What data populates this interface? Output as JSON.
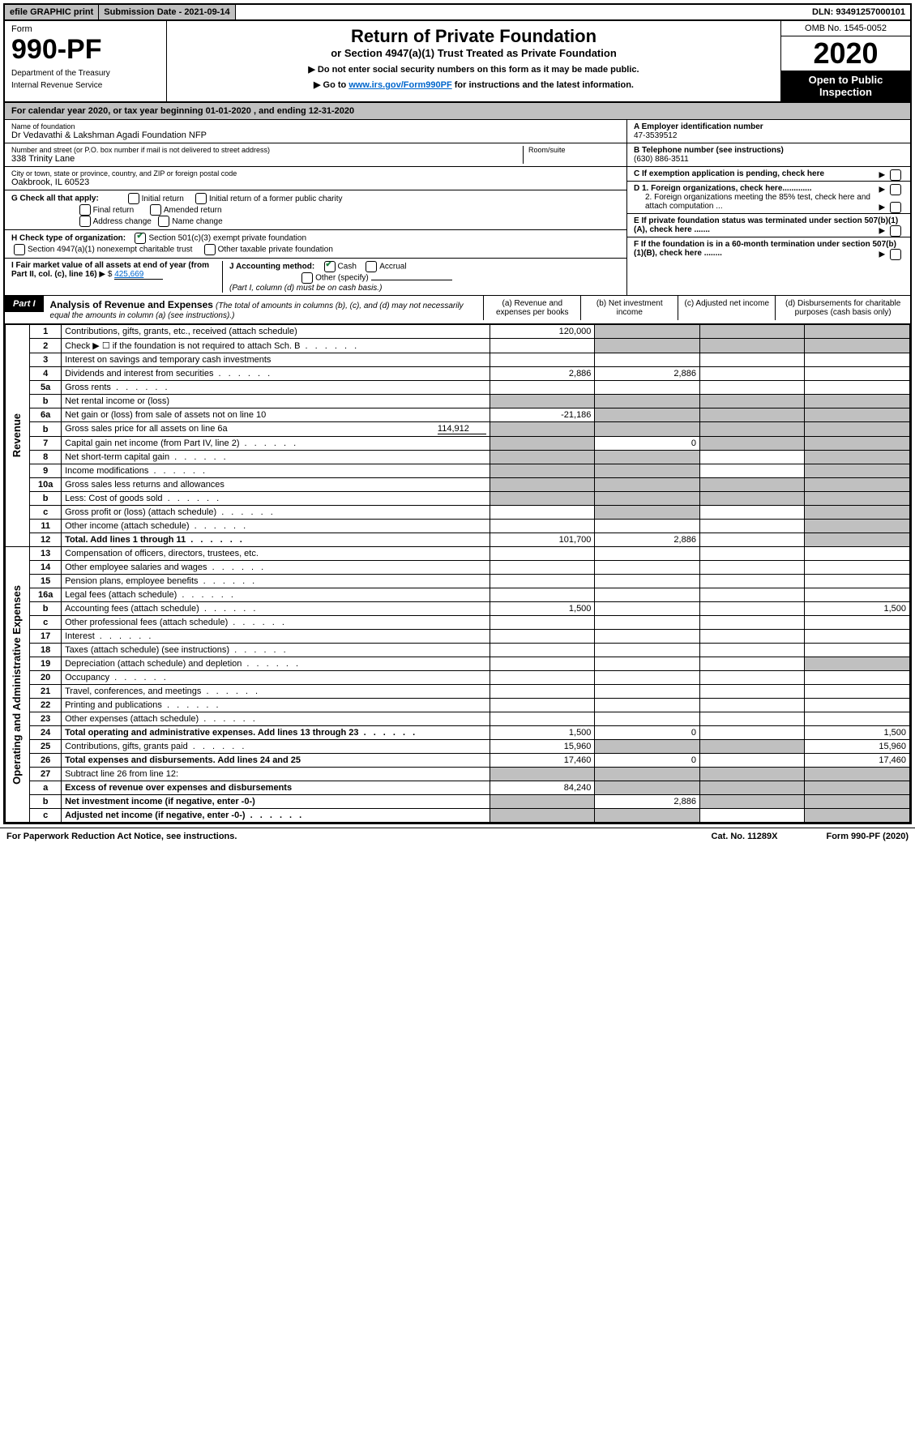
{
  "topbar": {
    "efile": "efile GRAPHIC print",
    "submission": "Submission Date - 2021-09-14",
    "dln": "DLN: 93491257000101"
  },
  "header": {
    "form_label": "Form",
    "form_number": "990-PF",
    "dept1": "Department of the Treasury",
    "dept2": "Internal Revenue Service",
    "title": "Return of Private Foundation",
    "subtitle": "or Section 4947(a)(1) Trust Treated as Private Foundation",
    "instruction1": "▶ Do not enter social security numbers on this form as it may be made public.",
    "instruction2_pre": "▶ Go to ",
    "instruction2_link": "www.irs.gov/Form990PF",
    "instruction2_post": " for instructions and the latest information.",
    "omb": "OMB No. 1545-0052",
    "year": "2020",
    "open_public": "Open to Public Inspection"
  },
  "calyear": "For calendar year 2020, or tax year beginning 01-01-2020                           , and ending 12-31-2020",
  "foundation": {
    "name_label": "Name of foundation",
    "name": "Dr Vedavathi & Lakshman Agadi Foundation NFP",
    "addr_label": "Number and street (or P.O. box number if mail is not delivered to street address)",
    "room_label": "Room/suite",
    "addr": "338 Trinity Lane",
    "city_label": "City or town, state or province, country, and ZIP or foreign postal code",
    "city": "Oakbrook, IL  60523",
    "ein_label": "A Employer identification number",
    "ein": "47-3539512",
    "phone_label": "B Telephone number (see instructions)",
    "phone": "(630) 886-3511",
    "c_label": "C  If exemption application is pending, check here",
    "d1": "D 1. Foreign organizations, check here.............",
    "d2": "2. Foreign organizations meeting the 85% test, check here and attach computation ...",
    "e_label": "E  If private foundation status was terminated under section 507(b)(1)(A), check here .......",
    "f_label": "F  If the foundation is in a 60-month termination under section 507(b)(1)(B), check here ........"
  },
  "sectionG": {
    "label": "G Check all that apply:",
    "opts": [
      "Initial return",
      "Initial return of a former public charity",
      "Final return",
      "Amended return",
      "Address change",
      "Name change"
    ]
  },
  "sectionH": {
    "label": "H Check type of organization:",
    "opt1": "Section 501(c)(3) exempt private foundation",
    "opt2": "Section 4947(a)(1) nonexempt charitable trust",
    "opt3": "Other taxable private foundation"
  },
  "sectionI": {
    "label": "I Fair market value of all assets at end of year (from Part II, col. (c), line 16)",
    "arrow": "▶ $",
    "value": "425,669"
  },
  "sectionJ": {
    "label": "J Accounting method:",
    "cash": "Cash",
    "accrual": "Accrual",
    "other": "Other (specify)",
    "note": "(Part I, column (d) must be on cash basis.)"
  },
  "partI": {
    "badge": "Part I",
    "title": "Analysis of Revenue and Expenses",
    "note": "(The total of amounts in columns (b), (c), and (d) may not necessarily equal the amounts in column (a) (see instructions).)",
    "col_a": "(a)   Revenue and expenses per books",
    "col_b": "(b)   Net investment income",
    "col_c": "(c)  Adjusted net income",
    "col_d": "(d)  Disbursements for charitable purposes (cash basis only)"
  },
  "revenue_label": "Revenue",
  "expenses_label": "Operating and Administrative Expenses",
  "rows": [
    {
      "n": "1",
      "desc": "Contributions, gifts, grants, etc., received (attach schedule)",
      "a": "120,000",
      "shade_b": true,
      "shade_c": true,
      "shade_d": true
    },
    {
      "n": "2",
      "desc": "Check ▶ ☐ if the foundation is not required to attach Sch. B",
      "shade_b": true,
      "shade_c": true,
      "shade_d": true,
      "dotted": true
    },
    {
      "n": "3",
      "desc": "Interest on savings and temporary cash investments"
    },
    {
      "n": "4",
      "desc": "Dividends and interest from securities",
      "a": "2,886",
      "b": "2,886",
      "dotted": true
    },
    {
      "n": "5a",
      "desc": "Gross rents",
      "dotted": true
    },
    {
      "n": "b",
      "desc": "Net rental income or (loss)",
      "shade_a": true,
      "shade_b": true,
      "shade_c": true,
      "shade_d": true
    },
    {
      "n": "6a",
      "desc": "Net gain or (loss) from sale of assets not on line 10",
      "a": "-21,186",
      "shade_b": true,
      "shade_c": true,
      "shade_d": true
    },
    {
      "n": "b",
      "desc": "Gross sales price for all assets on line 6a",
      "inline_val": "114,912",
      "shade_a": true,
      "shade_b": true,
      "shade_c": true,
      "shade_d": true
    },
    {
      "n": "7",
      "desc": "Capital gain net income (from Part IV, line 2)",
      "b": "0",
      "shade_a": true,
      "shade_c": true,
      "shade_d": true,
      "dotted": true
    },
    {
      "n": "8",
      "desc": "Net short-term capital gain",
      "shade_a": true,
      "shade_b": true,
      "shade_d": true,
      "dotted": true
    },
    {
      "n": "9",
      "desc": "Income modifications",
      "shade_a": true,
      "shade_b": true,
      "shade_d": true,
      "dotted": true
    },
    {
      "n": "10a",
      "desc": "Gross sales less returns and allowances",
      "shade_a": true,
      "shade_b": true,
      "shade_c": true,
      "shade_d": true
    },
    {
      "n": "b",
      "desc": "Less: Cost of goods sold",
      "shade_a": true,
      "shade_b": true,
      "shade_c": true,
      "shade_d": true,
      "dotted": true
    },
    {
      "n": "c",
      "desc": "Gross profit or (loss) (attach schedule)",
      "shade_b": true,
      "shade_d": true,
      "dotted": true
    },
    {
      "n": "11",
      "desc": "Other income (attach schedule)",
      "shade_d": true,
      "dotted": true
    },
    {
      "n": "12",
      "desc": "Total. Add lines 1 through 11",
      "a": "101,700",
      "b": "2,886",
      "shade_d": true,
      "bold": true,
      "dotted": true
    }
  ],
  "exp_rows": [
    {
      "n": "13",
      "desc": "Compensation of officers, directors, trustees, etc."
    },
    {
      "n": "14",
      "desc": "Other employee salaries and wages",
      "dotted": true
    },
    {
      "n": "15",
      "desc": "Pension plans, employee benefits",
      "dotted": true
    },
    {
      "n": "16a",
      "desc": "Legal fees (attach schedule)",
      "dotted": true
    },
    {
      "n": "b",
      "desc": "Accounting fees (attach schedule)",
      "a": "1,500",
      "d": "1,500",
      "dotted": true
    },
    {
      "n": "c",
      "desc": "Other professional fees (attach schedule)",
      "dotted": true
    },
    {
      "n": "17",
      "desc": "Interest",
      "dotted": true
    },
    {
      "n": "18",
      "desc": "Taxes (attach schedule) (see instructions)",
      "dotted": true
    },
    {
      "n": "19",
      "desc": "Depreciation (attach schedule) and depletion",
      "shade_d": true,
      "dotted": true
    },
    {
      "n": "20",
      "desc": "Occupancy",
      "dotted": true
    },
    {
      "n": "21",
      "desc": "Travel, conferences, and meetings",
      "dotted": true
    },
    {
      "n": "22",
      "desc": "Printing and publications",
      "dotted": true
    },
    {
      "n": "23",
      "desc": "Other expenses (attach schedule)",
      "dotted": true
    },
    {
      "n": "24",
      "desc": "Total operating and administrative expenses. Add lines 13 through 23",
      "a": "1,500",
      "b": "0",
      "d": "1,500",
      "bold": true,
      "dotted": true
    },
    {
      "n": "25",
      "desc": "Contributions, gifts, grants paid",
      "a": "15,960",
      "d": "15,960",
      "shade_b": true,
      "shade_c": true,
      "dotted": true
    },
    {
      "n": "26",
      "desc": "Total expenses and disbursements. Add lines 24 and 25",
      "a": "17,460",
      "b": "0",
      "d": "17,460",
      "bold": true
    },
    {
      "n": "27",
      "desc": "Subtract line 26 from line 12:",
      "shade_a": true,
      "shade_b": true,
      "shade_c": true,
      "shade_d": true
    },
    {
      "n": "a",
      "desc": "Excess of revenue over expenses and disbursements",
      "a": "84,240",
      "shade_b": true,
      "shade_c": true,
      "shade_d": true,
      "bold": true
    },
    {
      "n": "b",
      "desc": "Net investment income (if negative, enter -0-)",
      "b": "2,886",
      "shade_a": true,
      "shade_c": true,
      "shade_d": true,
      "bold": true
    },
    {
      "n": "c",
      "desc": "Adjusted net income (if negative, enter -0-)",
      "shade_a": true,
      "shade_b": true,
      "shade_d": true,
      "bold": true,
      "dotted": true
    }
  ],
  "footer": {
    "left": "For Paperwork Reduction Act Notice, see instructions.",
    "mid": "Cat. No. 11289X",
    "right": "Form 990-PF (2020)"
  }
}
